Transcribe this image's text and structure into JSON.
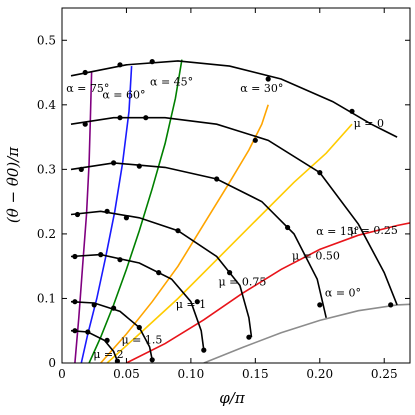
{
  "chart_data": {
    "type": "line",
    "title": "",
    "xlabel": "φ/π",
    "ylabel": "(θ − θ0)/π",
    "xlim": [
      0,
      0.27
    ],
    "ylim": [
      0,
      0.55
    ],
    "xticks": [
      0,
      0.05,
      0.1,
      0.15,
      0.2,
      0.25
    ],
    "xtick_labels": [
      "0",
      "0.05",
      "0.10",
      "0.15",
      "0.20",
      "0.25"
    ],
    "yticks": [
      0,
      0.1,
      0.2,
      0.3,
      0.4,
      0.5
    ],
    "ytick_labels": [
      "0",
      "0.1",
      "0.2",
      "0.3",
      "0.4",
      "0.5"
    ],
    "grid": false,
    "alpha_series": [
      {
        "label": "α = 0°",
        "color": "#8c8c8c",
        "x": [
          0.11,
          0.14,
          0.17,
          0.2,
          0.23,
          0.26,
          0.27
        ],
        "y": [
          0.0,
          0.024,
          0.047,
          0.066,
          0.081,
          0.09,
          0.091
        ],
        "label_x": 0.218,
        "label_y": 0.103
      },
      {
        "label": "α = 15°",
        "color": "#e8141a",
        "x": [
          0.05,
          0.08,
          0.11,
          0.14,
          0.17,
          0.2,
          0.23,
          0.26,
          0.27
        ],
        "y": [
          0.0,
          0.03,
          0.067,
          0.108,
          0.145,
          0.176,
          0.198,
          0.213,
          0.217
        ],
        "label_x": 0.214,
        "label_y": 0.198
      },
      {
        "label": "α = 30°",
        "color": "#ffcc00",
        "x": [
          0.035,
          0.06,
          0.09,
          0.12,
          0.15,
          0.18,
          0.205,
          0.225
        ],
        "y": [
          0.0,
          0.045,
          0.1,
          0.16,
          0.22,
          0.28,
          0.325,
          0.37
        ],
        "label_x": null,
        "label_y": null
      },
      {
        "label": "α = 30°",
        "color": "#ffa500",
        "x": [
          0.03,
          0.05,
          0.07,
          0.09,
          0.11,
          0.13,
          0.145,
          0.155,
          0.16
        ],
        "y": [
          0.0,
          0.045,
          0.095,
          0.15,
          0.215,
          0.28,
          0.33,
          0.37,
          0.4
        ],
        "label_x": 0.155,
        "label_y": 0.42
      },
      {
        "label": "α = 45°",
        "color": "#008000",
        "x": [
          0.021,
          0.03,
          0.04,
          0.05,
          0.06,
          0.07,
          0.08,
          0.088,
          0.093
        ],
        "y": [
          0.0,
          0.04,
          0.09,
          0.145,
          0.205,
          0.27,
          0.34,
          0.41,
          0.47
        ],
        "label_x": 0.085,
        "label_y": 0.43
      },
      {
        "label": "α = 60°",
        "color": "#1a1aff",
        "x": [
          0.015,
          0.02,
          0.027,
          0.034,
          0.041,
          0.047,
          0.052,
          0.054
        ],
        "y": [
          0.0,
          0.045,
          0.1,
          0.165,
          0.235,
          0.31,
          0.39,
          0.46
        ],
        "label_x": 0.048,
        "label_y": 0.41
      },
      {
        "label": "α = 75°",
        "color": "#800080",
        "x": [
          0.01,
          0.013,
          0.016,
          0.019,
          0.021,
          0.022,
          0.023
        ],
        "y": [
          0.0,
          0.07,
          0.15,
          0.23,
          0.31,
          0.38,
          0.45
        ],
        "label_x": 0.02,
        "label_y": 0.42
      }
    ],
    "mu_series": [
      {
        "label": "μ = 0",
        "color": "#000000",
        "x": [
          0.007,
          0.05,
          0.09,
          0.13,
          0.17,
          0.21,
          0.24,
          0.26
        ],
        "y": [
          0.445,
          0.462,
          0.468,
          0.46,
          0.44,
          0.405,
          0.37,
          0.35
        ],
        "label_x": 0.238,
        "label_y": 0.366
      },
      {
        "label": "μ = 0.25",
        "color": "#000000",
        "x": [
          0.007,
          0.04,
          0.08,
          0.12,
          0.16,
          0.2,
          0.23,
          0.25,
          0.26
        ],
        "y": [
          0.37,
          0.38,
          0.38,
          0.37,
          0.345,
          0.295,
          0.215,
          0.14,
          0.09
        ],
        "label_x": 0.242,
        "label_y": 0.2
      },
      {
        "label": "μ = 0.50",
        "color": "#000000",
        "x": [
          0.007,
          0.04,
          0.08,
          0.12,
          0.155,
          0.18,
          0.198,
          0.205
        ],
        "y": [
          0.3,
          0.31,
          0.303,
          0.285,
          0.25,
          0.2,
          0.13,
          0.07
        ],
        "label_x": 0.197,
        "label_y": 0.16
      },
      {
        "label": "μ = 0.75",
        "color": "#000000",
        "x": [
          0.007,
          0.03,
          0.06,
          0.09,
          0.12,
          0.138,
          0.145,
          0.147
        ],
        "y": [
          0.23,
          0.235,
          0.225,
          0.205,
          0.165,
          0.12,
          0.07,
          0.04
        ],
        "label_x": 0.14,
        "label_y": 0.12
      },
      {
        "label": "μ = 1",
        "color": "#000000",
        "x": [
          0.007,
          0.03,
          0.06,
          0.085,
          0.1,
          0.108,
          0.11
        ],
        "y": [
          0.165,
          0.168,
          0.155,
          0.13,
          0.095,
          0.05,
          0.02
        ],
        "label_x": 0.1,
        "label_y": 0.085
      },
      {
        "label": "μ = 1.5",
        "color": "#000000",
        "x": [
          0.007,
          0.025,
          0.045,
          0.06,
          0.068,
          0.07
        ],
        "y": [
          0.095,
          0.093,
          0.08,
          0.055,
          0.025,
          0.005
        ],
        "label_x": 0.062,
        "label_y": 0.03
      },
      {
        "label": "μ = 2",
        "color": "#000000",
        "x": [
          0.007,
          0.02,
          0.033,
          0.04,
          0.043
        ],
        "y": [
          0.05,
          0.048,
          0.035,
          0.018,
          0.003
        ],
        "label_x": 0.036,
        "label_y": 0.008
      }
    ],
    "markers": [
      [
        0.018,
        0.45
      ],
      [
        0.045,
        0.462
      ],
      [
        0.07,
        0.467
      ],
      [
        0.16,
        0.44
      ],
      [
        0.225,
        0.39
      ],
      [
        0.018,
        0.37
      ],
      [
        0.045,
        0.38
      ],
      [
        0.065,
        0.38
      ],
      [
        0.15,
        0.345
      ],
      [
        0.2,
        0.295
      ],
      [
        0.255,
        0.09
      ],
      [
        0.015,
        0.3
      ],
      [
        0.04,
        0.31
      ],
      [
        0.06,
        0.305
      ],
      [
        0.12,
        0.285
      ],
      [
        0.175,
        0.21
      ],
      [
        0.2,
        0.09
      ],
      [
        0.012,
        0.23
      ],
      [
        0.035,
        0.235
      ],
      [
        0.05,
        0.225
      ],
      [
        0.09,
        0.205
      ],
      [
        0.13,
        0.14
      ],
      [
        0.145,
        0.04
      ],
      [
        0.01,
        0.165
      ],
      [
        0.03,
        0.168
      ],
      [
        0.045,
        0.16
      ],
      [
        0.075,
        0.14
      ],
      [
        0.105,
        0.095
      ],
      [
        0.11,
        0.02
      ],
      [
        0.01,
        0.095
      ],
      [
        0.025,
        0.09
      ],
      [
        0.04,
        0.085
      ],
      [
        0.06,
        0.055
      ],
      [
        0.07,
        0.005
      ],
      [
        0.01,
        0.05
      ],
      [
        0.02,
        0.048
      ],
      [
        0.035,
        0.035
      ],
      [
        0.043,
        0.003
      ]
    ]
  }
}
